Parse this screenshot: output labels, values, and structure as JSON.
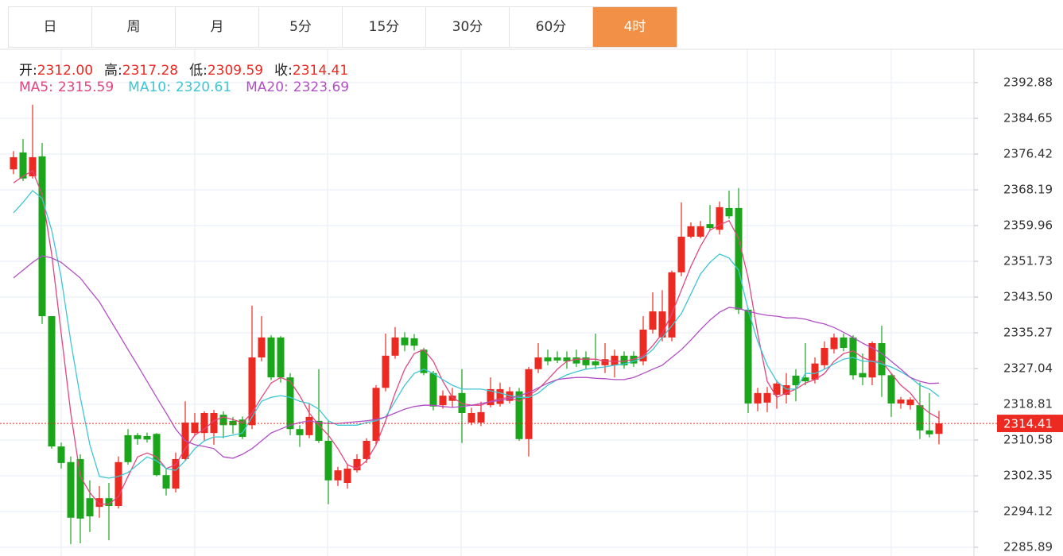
{
  "tabs": [
    "日",
    "周",
    "月",
    "5分",
    "15分",
    "30分",
    "60分",
    "4时"
  ],
  "active_tab": 7,
  "ohlc_legend": [
    {
      "label": "开:",
      "value": "2312.00"
    },
    {
      "label": "高:",
      "value": "2317.28"
    },
    {
      "label": "低:",
      "value": "2309.59"
    },
    {
      "label": "收:",
      "value": "2314.41"
    }
  ],
  "ma_legend": [
    {
      "label": "MA5:",
      "value": "2315.59"
    },
    {
      "label": "MA10:",
      "value": "2320.61"
    },
    {
      "label": "MA20:",
      "value": "2323.69"
    }
  ],
  "chart_data": {
    "type": "candlestick",
    "up_color": "#ec2a22",
    "down_color": "#1ba51b",
    "ylim": [
      2283.88,
      2400.56
    ],
    "yticks": [
      2392.88,
      2384.65,
      2376.42,
      2368.19,
      2359.96,
      2351.73,
      {
        "value": 2343.5,
        "label": "2343.50"
      },
      2335.27,
      2327.04,
      2318.81,
      2310.58,
      2302.35,
      2294.12,
      2285.89
    ],
    "grid": true,
    "last_price_label": "2314.41",
    "open": [
      2372.9,
      2376.8,
      2371.3,
      2375.9,
      2339.1,
      2309.1,
      2305.5,
      2306.2,
      2297.2,
      2295.2,
      2297.2,
      2295.4,
      2311.7,
      2311.7,
      2311.5,
      2312.0,
      2302.5,
      2299.4,
      2306.2,
      2312.2,
      2312.2,
      2312.2,
      2316.4,
      2315.0,
      2315.3,
      2314.0,
      2329.6,
      2334.2,
      2334.2,
      2325.0,
      2313.1,
      2311.7,
      2315.0,
      2310.4,
      2301.3,
      2300.7,
      2303.6,
      2306.2,
      2310.4,
      2322.6,
      2330.0,
      2334.2,
      2334.0,
      2331.4,
      2326.0,
      2318.6,
      2319.6,
      2321.4,
      2314.6,
      2314.6,
      2318.6,
      2318.9,
      2319.6,
      2321.8,
      2310.8,
      2326.9,
      2329.6,
      2329.6,
      2329.6,
      2329.6,
      2329.6,
      2328.7,
      2327.8,
      2327.8,
      2330.0,
      2330.0,
      2328.7,
      2336.0,
      2334.2,
      2334.2,
      2349.2,
      2357.4,
      2357.4,
      2360.3,
      2359.0,
      2364.0,
      2364.0,
      2340.6,
      2319.0,
      2319.2,
      2321.0,
      2321.0,
      2325.4,
      2325.0,
      2324.5,
      2327.8,
      2331.5,
      2334.2,
      2334.2,
      2326.0,
      2325.0,
      2332.9,
      2325.5,
      2319.0,
      2318.6,
      2318.6,
      2312.8,
      2312.0
    ],
    "high": [
      2377.1,
      2379.9,
      2387.8,
      2379.0,
      2339.1,
      2310.0,
      2306.8,
      2307.3,
      2301.3,
      2300.0,
      2300.7,
      2306.8,
      2313.1,
      2312.2,
      2312.3,
      2312.2,
      2304.0,
      2307.7,
      2319.5,
      2316.8,
      2317.2,
      2317.5,
      2317.2,
      2315.9,
      2316.0,
      2341.5,
      2339.1,
      2334.7,
      2334.5,
      2326.0,
      2314.0,
      2319.0,
      2326.9,
      2315.0,
      2304.4,
      2305.0,
      2307.3,
      2311.0,
      2323.2,
      2335.1,
      2336.6,
      2335.4,
      2335.0,
      2331.8,
      2326.5,
      2322.0,
      2322.6,
      2326.9,
      2318.0,
      2319.4,
      2325.0,
      2323.8,
      2322.8,
      2322.6,
      2327.4,
      2332.9,
      2331.4,
      2331.0,
      2331.0,
      2331.4,
      2331.0,
      2335.1,
      2332.9,
      2331.4,
      2331.0,
      2331.0,
      2339.1,
      2344.6,
      2345.1,
      2349.6,
      2365.3,
      2360.7,
      2361.0,
      2364.7,
      2365.5,
      2368.0,
      2368.6,
      2341.0,
      2322.6,
      2322.8,
      2324.4,
      2326.0,
      2326.9,
      2332.9,
      2329.6,
      2333.3,
      2335.1,
      2335.1,
      2334.7,
      2330.5,
      2333.3,
      2336.9,
      2326.0,
      2320.5,
      2320.4,
      2323.8,
      2321.4,
      2317.28
    ],
    "low": [
      2371.8,
      2370.2,
      2370.8,
      2337.3,
      2308.6,
      2304.0,
      2286.6,
      2286.8,
      2289.4,
      2292.7,
      2287.5,
      2294.8,
      2304.9,
      2309.5,
      2310.0,
      2302.2,
      2297.8,
      2298.5,
      2305.8,
      2311.7,
      2310.4,
      2309.5,
      2311.0,
      2312.0,
      2310.8,
      2313.1,
      2328.7,
      2324.4,
      2323.8,
      2311.7,
      2309.0,
      2311.0,
      2309.9,
      2295.8,
      2300.0,
      2299.4,
      2303.1,
      2305.3,
      2309.5,
      2321.8,
      2329.3,
      2331.0,
      2331.2,
      2325.5,
      2317.4,
      2317.8,
      2318.1,
      2309.9,
      2314.0,
      2313.8,
      2318.1,
      2318.3,
      2319.0,
      2310.4,
      2306.8,
      2326.0,
      2327.8,
      2328.3,
      2327.0,
      2327.4,
      2326.8,
      2326.9,
      2326.0,
      2325.0,
      2327.0,
      2327.4,
      2327.8,
      2335.1,
      2333.3,
      2333.3,
      2348.3,
      2357.0,
      2357.0,
      2358.9,
      2357.9,
      2361.5,
      2339.6,
      2316.8,
      2317.2,
      2317.0,
      2317.8,
      2319.0,
      2319.5,
      2323.2,
      2323.6,
      2327.0,
      2330.5,
      2331.0,
      2324.5,
      2323.2,
      2323.2,
      2320.5,
      2315.9,
      2317.8,
      2317.6,
      2310.8,
      2311.2,
      2309.59
    ],
    "close": [
      2375.7,
      2370.8,
      2375.7,
      2339.1,
      2309.1,
      2305.3,
      2292.7,
      2292.5,
      2293.0,
      2297.2,
      2295.4,
      2305.5,
      2305.5,
      2310.8,
      2310.7,
      2302.5,
      2299.4,
      2306.2,
      2314.6,
      2314.6,
      2316.8,
      2316.8,
      2314.0,
      2314.0,
      2311.3,
      2329.6,
      2334.2,
      2325.0,
      2325.0,
      2313.1,
      2311.7,
      2315.9,
      2310.4,
      2301.3,
      2303.6,
      2304.0,
      2306.2,
      2310.4,
      2322.6,
      2330.0,
      2334.2,
      2332.4,
      2332.3,
      2326.0,
      2318.3,
      2320.8,
      2320.8,
      2316.8,
      2316.8,
      2317.0,
      2322.3,
      2322.3,
      2321.8,
      2310.8,
      2326.9,
      2329.6,
      2328.7,
      2328.9,
      2328.7,
      2328.2,
      2327.8,
      2327.8,
      2329.2,
      2330.0,
      2327.8,
      2328.2,
      2336.0,
      2340.2,
      2340.2,
      2349.2,
      2357.4,
      2359.8,
      2359.8,
      2359.4,
      2364.2,
      2362.1,
      2340.6,
      2319.0,
      2321.4,
      2321.4,
      2323.6,
      2323.2,
      2323.2,
      2324.1,
      2328.2,
      2331.8,
      2334.2,
      2331.8,
      2325.5,
      2325.0,
      2332.9,
      2325.5,
      2319.0,
      2319.9,
      2319.9,
      2312.8,
      2311.9,
      2314.41
    ],
    "series": [
      {
        "color": "#e2467e",
        "values": [
          2369.8,
          2371.3,
          2372.6,
          2367.1,
          2353.4,
          2335.1,
          2316.8,
          2302.2,
          2298.5,
          2295.8,
          2295.8,
          2297.6,
          2302.2,
          2306.7,
          2307.6,
          2306.7,
          2304.0,
          2304.9,
          2308.6,
          2311.7,
          2313.1,
          2315.0,
          2315.9,
          2315.3,
          2314.6,
          2316.8,
          2320.4,
          2323.7,
          2325.0,
          2324.1,
          2320.8,
          2316.8,
          2314.0,
          2311.7,
          2308.6,
          2304.9,
          2304.0,
          2305.8,
          2309.5,
          2315.0,
          2321.4,
          2326.9,
          2330.5,
          2331.4,
          2328.7,
          2324.1,
          2320.4,
          2319.0,
          2318.6,
          2318.6,
          2319.5,
          2320.1,
          2320.4,
          2319.5,
          2320.8,
          2322.3,
          2324.5,
          2326.9,
          2328.7,
          2329.2,
          2329.2,
          2329.2,
          2328.7,
          2328.7,
          2328.7,
          2329.2,
          2330.0,
          2332.3,
          2335.1,
          2339.7,
          2345.1,
          2350.6,
          2355.2,
          2358.9,
          2360.1,
          2361.1,
          2357.0,
          2347.9,
          2335.1,
          2324.1,
          2320.4,
          2321.4,
          2322.3,
          2323.7,
          2324.5,
          2325.9,
          2328.7,
          2330.5,
          2331.1,
          2329.6,
          2328.7,
          2328.7,
          2325.9,
          2323.2,
          2321.4,
          2318.6,
          2316.8,
          2315.59
        ]
      },
      {
        "color": "#3dc6d4",
        "values": [
          2362.9,
          2365.3,
          2368.0,
          2366.2,
          2358.9,
          2347.9,
          2333.3,
          2320.4,
          2309.5,
          2302.2,
          2301.8,
          2302.2,
          2303.1,
          2304.9,
          2306.7,
          2305.8,
          2304.0,
          2303.6,
          2305.8,
          2308.6,
          2310.4,
          2311.3,
          2311.3,
          2311.7,
          2312.2,
          2315.9,
          2319.5,
          2320.4,
          2320.8,
          2320.4,
          2319.5,
          2319.0,
          2317.7,
          2315.0,
          2314.0,
          2314.0,
          2314.0,
          2314.6,
          2315.0,
          2315.9,
          2319.5,
          2323.2,
          2325.9,
          2326.9,
          2325.9,
          2324.5,
          2323.2,
          2322.3,
          2322.3,
          2322.3,
          2321.9,
          2321.4,
          2320.8,
          2320.4,
          2320.4,
          2321.4,
          2323.2,
          2324.5,
          2325.6,
          2326.3,
          2326.9,
          2327.2,
          2327.4,
          2327.8,
          2328.1,
          2328.7,
          2329.6,
          2331.4,
          2334.2,
          2336.9,
          2339.7,
          2344.2,
          2348.8,
          2351.5,
          2353.4,
          2352.5,
          2349.7,
          2340.6,
          2333.3,
          2327.8,
          2324.1,
          2322.3,
          2322.3,
          2325.9,
          2325.9,
          2326.9,
          2328.1,
          2329.2,
          2329.6,
          2328.7,
          2328.7,
          2328.1,
          2327.4,
          2326.3,
          2325.0,
          2323.2,
          2322.3,
          2320.61
        ]
      },
      {
        "color": "#b24ec6",
        "values": [
          2347.9,
          2349.7,
          2351.5,
          2353.0,
          2352.5,
          2351.5,
          2349.7,
          2347.9,
          2345.1,
          2342.4,
          2338.7,
          2335.1,
          2331.4,
          2327.8,
          2324.1,
          2320.4,
          2316.8,
          2313.1,
          2310.4,
          2309.5,
          2309.1,
          2308.6,
          2306.7,
          2306.4,
          2307.3,
          2308.6,
          2310.4,
          2312.2,
          2313.1,
          2314.0,
          2314.6,
          2315.0,
          2314.6,
          2314.4,
          2314.4,
          2314.6,
          2314.8,
          2315.0,
          2315.3,
          2315.9,
          2316.8,
          2317.7,
          2318.3,
          2318.6,
          2318.6,
          2318.3,
          2318.1,
          2318.3,
          2318.6,
          2319.0,
          2319.4,
          2319.7,
          2320.1,
          2320.8,
          2321.5,
          2322.6,
          2323.7,
          2324.5,
          2324.8,
          2325.0,
          2325.0,
          2324.8,
          2324.7,
          2324.5,
          2324.5,
          2325.0,
          2325.9,
          2326.9,
          2327.8,
          2329.6,
          2331.4,
          2333.6,
          2336.0,
          2338.2,
          2340.0,
          2341.1,
          2340.9,
          2340.2,
          2339.7,
          2339.3,
          2339.1,
          2338.7,
          2338.7,
          2338.4,
          2337.8,
          2337.3,
          2336.5,
          2335.4,
          2334.2,
          2332.9,
          2331.8,
          2330.5,
          2328.7,
          2326.9,
          2325.0,
          2324.1,
          2323.6,
          2323.69
        ]
      }
    ]
  }
}
